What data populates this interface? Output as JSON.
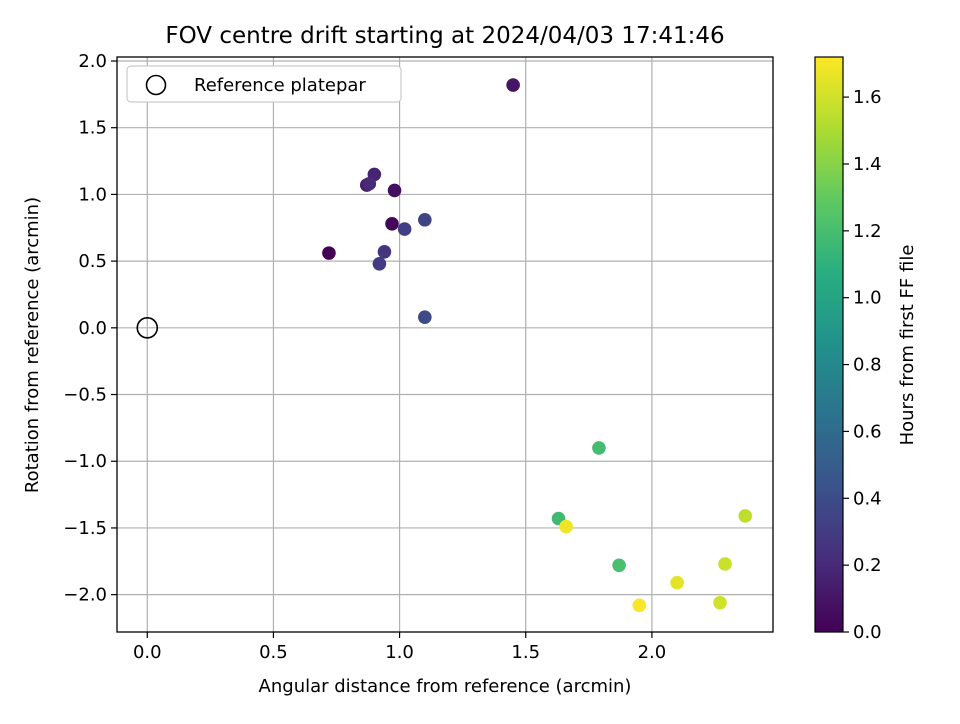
{
  "chart_data": {
    "type": "scatter",
    "title": "FOV centre drift starting at 2024/04/03 17:41:46",
    "xlabel": "Angular distance from reference (arcmin)",
    "ylabel": "Rotation from reference (arcmin)",
    "xlim": [
      -0.12,
      2.48
    ],
    "ylim": [
      -2.28,
      2.03
    ],
    "xticks": [
      "0.0",
      "0.5",
      "1.0",
      "1.5",
      "2.0"
    ],
    "xtick_values": [
      0.0,
      0.5,
      1.0,
      1.5,
      2.0
    ],
    "yticks": [
      "−2.0",
      "−1.5",
      "−1.0",
      "−0.5",
      "0.0",
      "0.5",
      "1.0",
      "1.5",
      "2.0"
    ],
    "ytick_values": [
      -2.0,
      -1.5,
      -1.0,
      -0.5,
      0.0,
      0.5,
      1.0,
      1.5,
      2.0
    ],
    "grid": true,
    "legend": {
      "placement": "top-left",
      "entries": [
        "Reference platepar"
      ]
    },
    "reference_point": {
      "x": 0.0,
      "y": 0.0,
      "label": "Reference platepar"
    },
    "colorbar": {
      "label": "Hours from first FF file",
      "colormap": "viridis",
      "range": [
        0.0,
        1.72
      ],
      "ticks": [
        "0.0",
        "0.2",
        "0.4",
        "0.6",
        "0.8",
        "1.0",
        "1.2",
        "1.4",
        "1.6"
      ],
      "tick_values": [
        0.0,
        0.2,
        0.4,
        0.6,
        0.8,
        1.0,
        1.2,
        1.4,
        1.6
      ]
    },
    "points": [
      {
        "x": 0.72,
        "y": 0.56,
        "hours": 0.0
      },
      {
        "x": 0.97,
        "y": 0.78,
        "hours": 0.03
      },
      {
        "x": 0.98,
        "y": 1.03,
        "hours": 0.07
      },
      {
        "x": 1.45,
        "y": 1.82,
        "hours": 0.1
      },
      {
        "x": 0.87,
        "y": 1.07,
        "hours": 0.14
      },
      {
        "x": 0.9,
        "y": 1.15,
        "hours": 0.17
      },
      {
        "x": 0.88,
        "y": 1.08,
        "hours": 0.2
      },
      {
        "x": 0.94,
        "y": 0.57,
        "hours": 0.26
      },
      {
        "x": 0.92,
        "y": 0.48,
        "hours": 0.29
      },
      {
        "x": 1.02,
        "y": 0.74,
        "hours": 0.32
      },
      {
        "x": 1.1,
        "y": 0.81,
        "hours": 0.35
      },
      {
        "x": 1.1,
        "y": 0.08,
        "hours": 0.38
      },
      {
        "x": 1.63,
        "y": -1.43,
        "hours": 1.17
      },
      {
        "x": 1.79,
        "y": -0.9,
        "hours": 1.19
      },
      {
        "x": 1.87,
        "y": -1.78,
        "hours": 1.21
      },
      {
        "x": 2.37,
        "y": -1.41,
        "hours": 1.55
      },
      {
        "x": 2.29,
        "y": -1.77,
        "hours": 1.58
      },
      {
        "x": 2.27,
        "y": -2.06,
        "hours": 1.6
      },
      {
        "x": 2.1,
        "y": -1.91,
        "hours": 1.65
      },
      {
        "x": 1.66,
        "y": -1.49,
        "hours": 1.68
      },
      {
        "x": 1.95,
        "y": -2.08,
        "hours": 1.71
      }
    ]
  }
}
